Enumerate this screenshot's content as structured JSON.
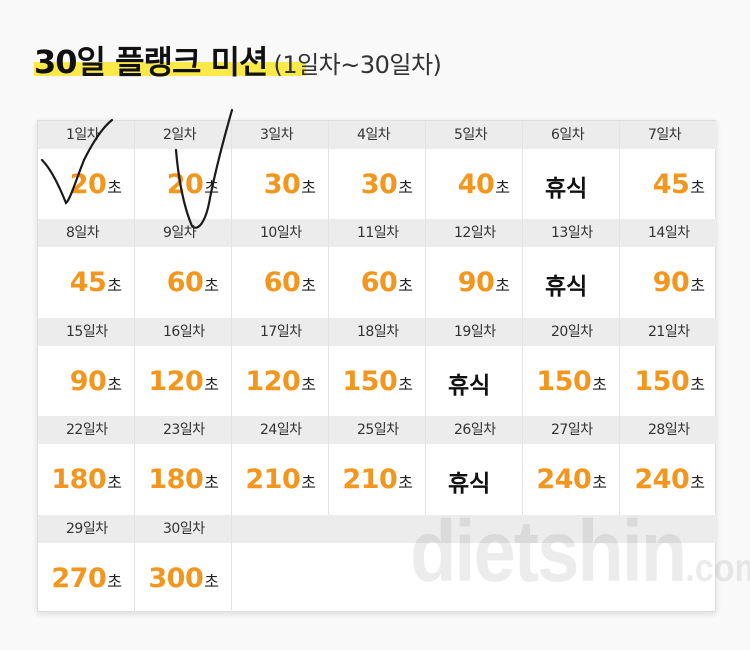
{
  "header": {
    "title": "30일 플랭크 미션",
    "subtitle": "(1일차~30일차)"
  },
  "unit_label": "초",
  "rest_label": "휴식",
  "days": [
    {
      "label": "1일차",
      "value": "20"
    },
    {
      "label": "2일차",
      "value": "20"
    },
    {
      "label": "3일차",
      "value": "30"
    },
    {
      "label": "4일차",
      "value": "30"
    },
    {
      "label": "5일차",
      "value": "40"
    },
    {
      "label": "6일차",
      "value": "휴식"
    },
    {
      "label": "7일차",
      "value": "45"
    },
    {
      "label": "8일차",
      "value": "45"
    },
    {
      "label": "9일차",
      "value": "60"
    },
    {
      "label": "10일차",
      "value": "60"
    },
    {
      "label": "11일차",
      "value": "60"
    },
    {
      "label": "12일차",
      "value": "90"
    },
    {
      "label": "13일차",
      "value": "휴식"
    },
    {
      "label": "14일차",
      "value": "90"
    },
    {
      "label": "15일차",
      "value": "90"
    },
    {
      "label": "16일차",
      "value": "120"
    },
    {
      "label": "17일차",
      "value": "120"
    },
    {
      "label": "18일차",
      "value": "150"
    },
    {
      "label": "19일차",
      "value": "휴식"
    },
    {
      "label": "20일차",
      "value": "150"
    },
    {
      "label": "21일차",
      "value": "150"
    },
    {
      "label": "22일차",
      "value": "180"
    },
    {
      "label": "23일차",
      "value": "180"
    },
    {
      "label": "24일차",
      "value": "210"
    },
    {
      "label": "25일차",
      "value": "210"
    },
    {
      "label": "26일차",
      "value": "휴식"
    },
    {
      "label": "27일차",
      "value": "240"
    },
    {
      "label": "28일차",
      "value": "240"
    },
    {
      "label": "29일차",
      "value": "270"
    },
    {
      "label": "30일차",
      "value": "300"
    }
  ],
  "watermark": {
    "main": "dietshin",
    "suffix": ".com"
  },
  "colors": {
    "accent": "#f2961e",
    "highlight": "#fbe94a",
    "header_bg": "#ececec"
  }
}
